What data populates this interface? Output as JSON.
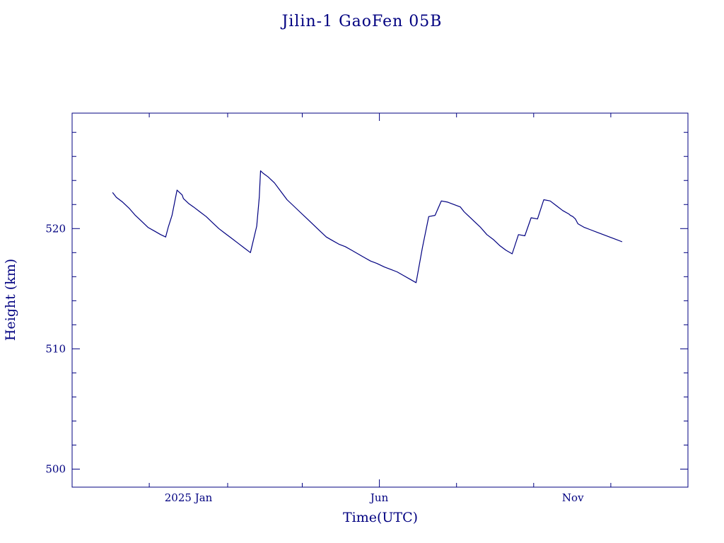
{
  "chart_data": {
    "type": "line",
    "title": "Jilin-1 GaoFen 05B",
    "xlabel": "Time(UTC)",
    "ylabel": "Height (km)",
    "x_tick_labels": [
      "2025 Jan",
      "Jun",
      "Nov"
    ],
    "x_tick_dates": [
      "2025-01-01",
      "2025-06-01",
      "2025-11-01"
    ],
    "y_ticks": [
      500,
      510,
      520
    ],
    "y_tick_labels": [
      "500",
      "510",
      "520"
    ],
    "xlim": [
      "2024-10-01",
      "2026-01-31"
    ],
    "ylim": [
      498.5,
      529.6
    ],
    "grid": false,
    "line_color": "#000080",
    "series": [
      {
        "x": [
          "2024-11-02",
          "2024-11-05",
          "2024-11-10",
          "2024-11-15",
          "2024-11-20",
          "2024-11-25",
          "2024-11-30",
          "2024-12-05",
          "2024-12-10",
          "2024-12-14",
          "2024-12-16",
          "2024-12-19",
          "2024-12-23",
          "2024-12-25",
          "2024-12-27",
          "2024-12-28",
          "2024-12-30",
          "2025-01-01",
          "2025-01-05",
          "2025-01-10",
          "2025-01-15",
          "2025-01-20",
          "2025-01-25",
          "2025-01-30",
          "2025-02-04",
          "2025-02-09",
          "2025-02-14",
          "2025-02-19",
          "2025-02-24",
          "2025-02-26",
          "2025-02-27",
          "2025-02-28",
          "2025-03-01",
          "2025-03-05",
          "2025-03-10",
          "2025-03-15",
          "2025-03-20",
          "2025-03-25",
          "2025-03-30",
          "2025-04-05",
          "2025-04-10",
          "2025-04-15",
          "2025-04-20",
          "2025-04-25",
          "2025-04-30",
          "2025-05-05",
          "2025-05-10",
          "2025-05-15",
          "2025-05-20",
          "2025-05-25",
          "2025-05-30",
          "2025-06-05",
          "2025-06-10",
          "2025-06-15",
          "2025-06-20",
          "2025-06-25",
          "2025-06-30",
          "2025-07-05",
          "2025-07-10",
          "2025-07-15",
          "2025-07-20",
          "2025-07-25",
          "2025-07-30",
          "2025-08-04",
          "2025-08-07",
          "2025-08-09",
          "2025-08-11",
          "2025-08-13",
          "2025-08-15",
          "2025-08-20",
          "2025-08-25",
          "2025-08-30",
          "2025-09-04",
          "2025-09-09",
          "2025-09-14",
          "2025-09-19",
          "2025-09-24",
          "2025-09-29",
          "2025-10-04",
          "2025-10-09",
          "2025-10-14",
          "2025-10-19",
          "2025-10-24",
          "2025-10-29",
          "2025-10-30",
          "2025-11-01",
          "2025-11-03",
          "2025-11-04",
          "2025-11-05",
          "2025-11-10",
          "2025-11-15",
          "2025-11-20",
          "2025-11-25",
          "2025-11-30",
          "2025-12-05",
          "2025-12-10"
        ],
        "y": [
          523.0,
          522.6,
          522.2,
          521.7,
          521.1,
          520.6,
          520.1,
          519.8,
          519.5,
          519.3,
          520.1,
          521.1,
          523.2,
          523.0,
          522.8,
          522.5,
          522.3,
          522.1,
          521.8,
          521.4,
          521.0,
          520.5,
          520.0,
          519.6,
          519.2,
          518.8,
          518.4,
          518.0,
          520.2,
          522.6,
          524.8,
          524.7,
          524.6,
          524.3,
          523.8,
          523.1,
          522.4,
          521.9,
          521.4,
          520.8,
          520.3,
          519.8,
          519.3,
          519.0,
          518.7,
          518.5,
          518.2,
          517.9,
          517.6,
          517.3,
          517.1,
          516.8,
          516.6,
          516.4,
          516.1,
          515.8,
          515.5,
          518.4,
          521.0,
          521.1,
          522.3,
          522.2,
          522.0,
          521.8,
          521.4,
          521.2,
          521.0,
          520.8,
          520.6,
          520.1,
          519.5,
          519.1,
          518.6,
          518.2,
          517.9,
          519.5,
          519.4,
          520.9,
          520.8,
          522.4,
          522.3,
          521.9,
          521.5,
          521.2,
          521.1,
          521.0,
          520.8,
          520.6,
          520.4,
          520.1,
          519.9,
          519.7,
          519.5,
          519.3,
          519.1,
          518.9
        ]
      }
    ]
  }
}
